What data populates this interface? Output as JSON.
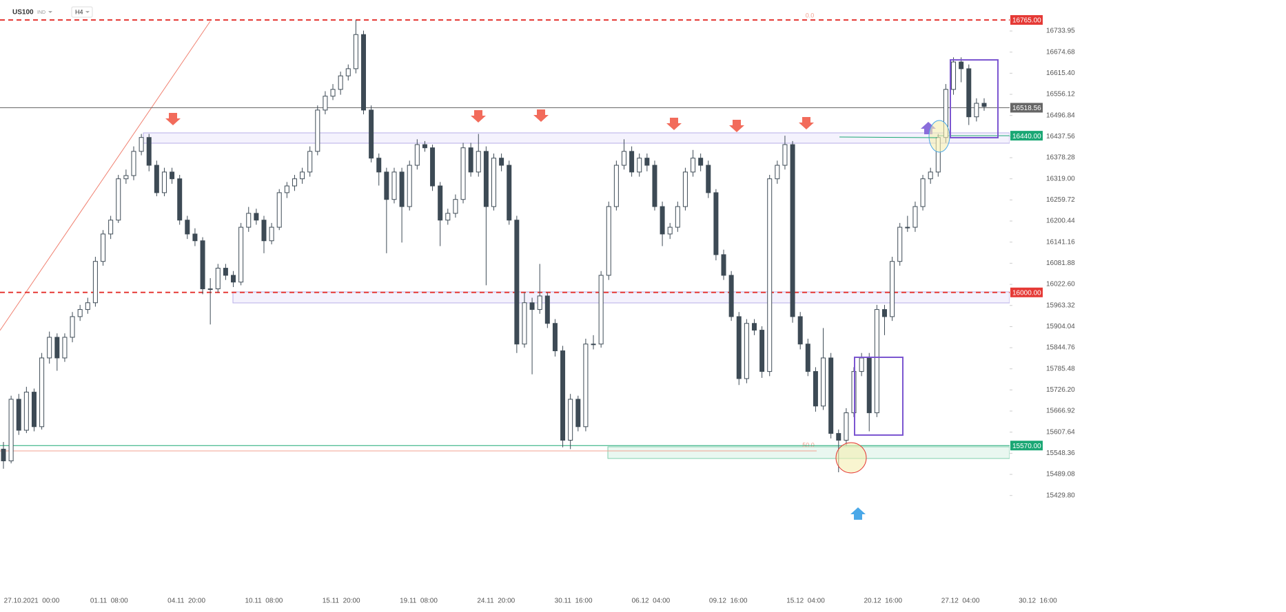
{
  "header": {
    "symbol": "US100",
    "market": "IND",
    "timeframe": "H4"
  },
  "chart_data": {
    "type": "candlestick",
    "candles": [
      [
        15560,
        15580,
        15505,
        15527
      ],
      [
        15527,
        15710,
        15520,
        15700
      ],
      [
        15700,
        15715,
        15600,
        15613
      ],
      [
        15613,
        15735,
        15605,
        15720
      ],
      [
        15720,
        15730,
        15610,
        15623
      ],
      [
        15623,
        15830,
        15615,
        15816
      ],
      [
        15816,
        15890,
        15800,
        15874
      ],
      [
        15874,
        15885,
        15780,
        15816
      ],
      [
        15816,
        15885,
        15805,
        15874
      ],
      [
        15874,
        15945,
        15860,
        15932
      ],
      [
        15932,
        15965,
        15920,
        15952
      ],
      [
        15952,
        15985,
        15940,
        15971
      ],
      [
        15971,
        16100,
        15960,
        16087
      ],
      [
        16087,
        16175,
        16075,
        16164
      ],
      [
        16164,
        16215,
        16150,
        16203
      ],
      [
        16203,
        16330,
        16195,
        16319
      ],
      [
        16319,
        16345,
        16305,
        16328
      ],
      [
        16328,
        16410,
        16315,
        16396
      ],
      [
        16396,
        16445,
        16385,
        16435
      ],
      [
        16435,
        16445,
        16340,
        16357
      ],
      [
        16357,
        16370,
        16270,
        16280
      ],
      [
        16280,
        16350,
        16270,
        16338
      ],
      [
        16338,
        16350,
        16305,
        16319
      ],
      [
        16319,
        16330,
        16190,
        16203
      ],
      [
        16203,
        16215,
        16150,
        16164
      ],
      [
        16164,
        16180,
        16130,
        16145
      ],
      [
        16145,
        16155,
        15995,
        16010
      ],
      [
        16010,
        16040,
        15910,
        16010
      ],
      [
        16010,
        16080,
        16000,
        16068
      ],
      [
        16068,
        16080,
        16035,
        16048
      ],
      [
        16048,
        16060,
        16015,
        16029
      ],
      [
        16029,
        16195,
        16020,
        16183
      ],
      [
        16183,
        16240,
        16170,
        16222
      ],
      [
        16222,
        16235,
        16190,
        16203
      ],
      [
        16203,
        16215,
        16110,
        16145
      ],
      [
        16145,
        16195,
        16135,
        16183
      ],
      [
        16183,
        16290,
        16175,
        16280
      ],
      [
        16280,
        16310,
        16265,
        16299
      ],
      [
        16299,
        16330,
        16285,
        16319
      ],
      [
        16319,
        16350,
        16305,
        16338
      ],
      [
        16338,
        16410,
        16325,
        16396
      ],
      [
        16396,
        16525,
        16385,
        16512
      ],
      [
        16512,
        16565,
        16500,
        16551
      ],
      [
        16551,
        16585,
        16540,
        16570
      ],
      [
        16570,
        16620,
        16555,
        16608
      ],
      [
        16608,
        16640,
        16595,
        16628
      ],
      [
        16628,
        16765,
        16615,
        16724
      ],
      [
        16724,
        16735,
        16500,
        16512
      ],
      [
        16512,
        16525,
        16365,
        16377
      ],
      [
        16377,
        16390,
        16300,
        16338
      ],
      [
        16338,
        16350,
        16110,
        16261
      ],
      [
        16261,
        16350,
        16250,
        16338
      ],
      [
        16338,
        16350,
        16140,
        16241
      ],
      [
        16241,
        16370,
        16230,
        16357
      ],
      [
        16357,
        16430,
        16345,
        16415
      ],
      [
        16415,
        16425,
        16395,
        16406
      ],
      [
        16406,
        16415,
        16285,
        16299
      ],
      [
        16299,
        16310,
        16130,
        16203
      ],
      [
        16203,
        16235,
        16190,
        16222
      ],
      [
        16222,
        16275,
        16210,
        16261
      ],
      [
        16261,
        16420,
        16250,
        16406
      ],
      [
        16406,
        16420,
        16325,
        16338
      ],
      [
        16338,
        16445,
        16325,
        16396
      ],
      [
        16396,
        16410,
        16020,
        16241
      ],
      [
        16241,
        16390,
        16230,
        16377
      ],
      [
        16377,
        16390,
        16340,
        16357
      ],
      [
        16357,
        16370,
        16190,
        16203
      ],
      [
        16203,
        16215,
        15830,
        15855
      ],
      [
        15855,
        16000,
        15845,
        15971
      ],
      [
        15971,
        15985,
        15770,
        15952
      ],
      [
        15952,
        16080,
        15940,
        15990
      ],
      [
        15990,
        16000,
        15900,
        15913
      ],
      [
        15913,
        15925,
        15820,
        15836
      ],
      [
        15836,
        15850,
        15565,
        15585
      ],
      [
        15585,
        15715,
        15560,
        15700
      ],
      [
        15700,
        15710,
        15610,
        15623
      ],
      [
        15623,
        15870,
        15610,
        15855
      ],
      [
        15855,
        15880,
        15840,
        15855
      ],
      [
        15855,
        16060,
        15845,
        16048
      ],
      [
        16048,
        16255,
        16035,
        16241
      ],
      [
        16241,
        16370,
        16230,
        16357
      ],
      [
        16357,
        16430,
        16345,
        16396
      ],
      [
        16396,
        16410,
        16325,
        16338
      ],
      [
        16338,
        16390,
        16325,
        16377
      ],
      [
        16377,
        16390,
        16340,
        16357
      ],
      [
        16357,
        16370,
        16230,
        16241
      ],
      [
        16241,
        16255,
        16130,
        16164
      ],
      [
        16164,
        16195,
        16150,
        16183
      ],
      [
        16183,
        16255,
        16170,
        16241
      ],
      [
        16241,
        16350,
        16230,
        16338
      ],
      [
        16338,
        16400,
        16325,
        16377
      ],
      [
        16377,
        16390,
        16340,
        16357
      ],
      [
        16357,
        16370,
        16265,
        16280
      ],
      [
        16280,
        16290,
        16090,
        16106
      ],
      [
        16106,
        16120,
        16035,
        16048
      ],
      [
        16048,
        16060,
        15920,
        15932
      ],
      [
        15932,
        15945,
        15740,
        15758
      ],
      [
        15758,
        15925,
        15745,
        15913
      ],
      [
        15913,
        15925,
        15880,
        15894
      ],
      [
        15894,
        15905,
        15760,
        15778
      ],
      [
        15778,
        16330,
        15765,
        16319
      ],
      [
        16319,
        16370,
        16305,
        16357
      ],
      [
        16357,
        16440,
        16345,
        16415
      ],
      [
        16415,
        16425,
        15915,
        15932
      ],
      [
        15932,
        15945,
        15840,
        15855
      ],
      [
        15855,
        15870,
        15765,
        15778
      ],
      [
        15778,
        15790,
        15665,
        15681
      ],
      [
        15681,
        15900,
        15670,
        15816
      ],
      [
        15816,
        15830,
        15590,
        15604
      ],
      [
        15604,
        15615,
        15495,
        15585
      ],
      [
        15585,
        15675,
        15570,
        15662
      ],
      [
        15662,
        15790,
        15650,
        15778
      ],
      [
        15778,
        15830,
        15765,
        15816
      ],
      [
        15816,
        15830,
        15610,
        15662
      ],
      [
        15662,
        15965,
        15650,
        15952
      ],
      [
        15952,
        15965,
        15880,
        15932
      ],
      [
        15932,
        16100,
        15920,
        16087
      ],
      [
        16087,
        16195,
        16075,
        16183
      ],
      [
        16183,
        16215,
        16170,
        16183
      ],
      [
        16183,
        16255,
        16170,
        16241
      ],
      [
        16241,
        16330,
        16230,
        16319
      ],
      [
        16319,
        16350,
        16305,
        16338
      ],
      [
        16338,
        16445,
        16325,
        16435
      ],
      [
        16435,
        16585,
        16420,
        16570
      ],
      [
        16570,
        16660,
        16555,
        16647
      ],
      [
        16647,
        16660,
        16590,
        16628
      ],
      [
        16628,
        16640,
        16470,
        16493
      ],
      [
        16493,
        16545,
        16480,
        16531
      ],
      [
        16531,
        16545,
        16510,
        16522
      ]
    ],
    "up_color": "#ffffff",
    "down_color": "#3d4a55",
    "x_labels": [
      "27.10.2021  00:00",
      "01.11  08:00",
      "04.11  20:00",
      "10.11  08:00",
      "15.11  20:00",
      "19.11  08:00",
      "24.11  20:00",
      "30.11  16:00",
      "06.12  04:00",
      "09.12  16:00",
      "15.12  04:00",
      "20.12  16:00",
      "27.12  04:00",
      "30.12  16:00"
    ],
    "ylim": [
      15410,
      16821
    ],
    "yticks": [
      16733.95,
      16674.68,
      {
        "value": 16615.4,
        "label": "16615.40"
      },
      16556.12,
      16496.84,
      16437.56,
      16378.28,
      {
        "value": 16319,
        "label": "16319.00"
      },
      16259.72,
      16200.44,
      16141.16,
      16081.88,
      {
        "value": 16022.6,
        "label": "16022.60"
      },
      15963.32,
      15904.04,
      15844.76,
      15785.48,
      {
        "value": 15726.2,
        "label": "15726.20"
      },
      15666.92,
      15607.64,
      15548.36,
      15489.08,
      {
        "value": 15429.8,
        "label": "15429.80"
      }
    ],
    "levels": [
      {
        "value": 16765,
        "label": "16765.00",
        "color": "#e53935",
        "style": "dashed"
      },
      {
        "value": 16518.56,
        "label": "16518.56",
        "color": "#666666",
        "style": "solid"
      },
      {
        "value": 16440,
        "label": "16440.00",
        "color": "#1aa774",
        "style": "short"
      },
      {
        "value": 16000,
        "label": "16000.00",
        "color": "#e53935",
        "style": "dashed"
      },
      {
        "value": 15570,
        "label": "15570.00",
        "color": "#1aa774",
        "style": "solid"
      }
    ],
    "fib_labels": [
      "0.0",
      "50.0"
    ]
  }
}
